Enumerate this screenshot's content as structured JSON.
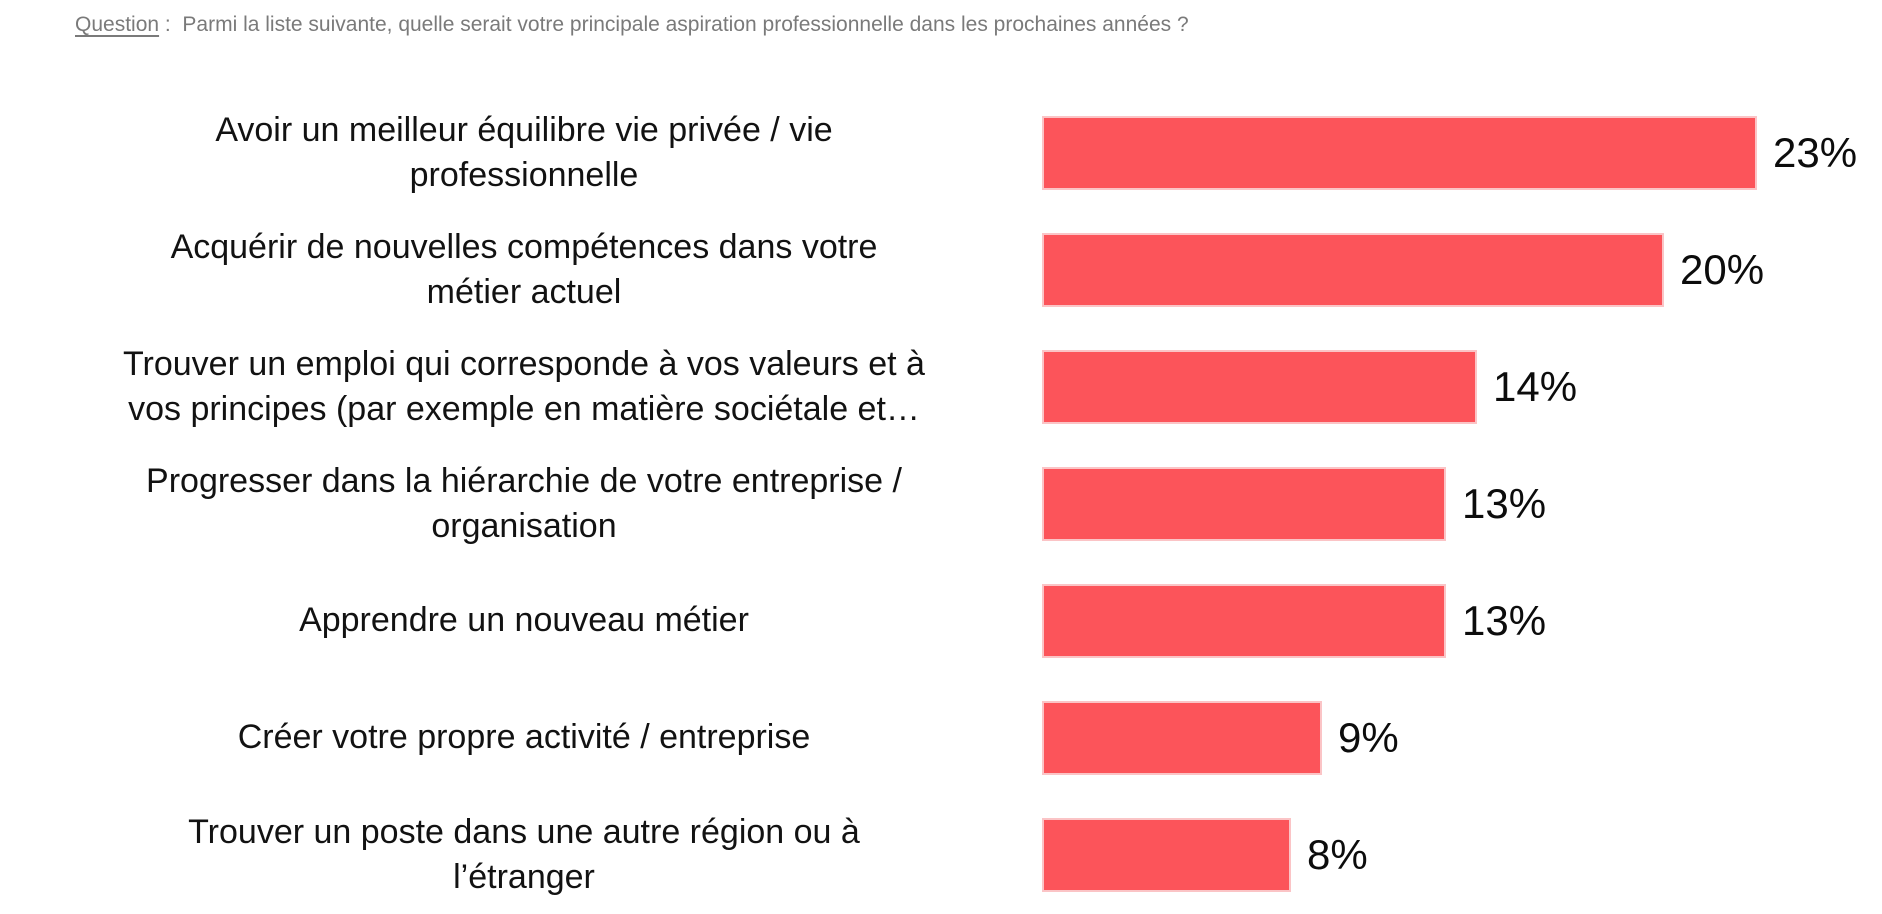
{
  "question": {
    "label": "Question",
    "separator": " :  ",
    "text": "Parmi la liste suivante, quelle serait votre principale aspiration professionnelle dans les prochaines années ?"
  },
  "colors": {
    "bar": "#fc545a",
    "bar_border": "#fbc4c6",
    "question_text": "#7a7a7a",
    "category_text": "#121212",
    "value_text": "#0c0c0c"
  },
  "chart_data": {
    "type": "bar",
    "orientation": "horizontal",
    "unit": "%",
    "xlim": [
      0,
      23
    ],
    "axes_visible": false,
    "grid": false,
    "legend": false,
    "title": "",
    "xlabel": "",
    "ylabel": "",
    "bar_color": "#fc545a",
    "categories": [
      "Avoir un meilleur équilibre vie privée / vie\nprofessionnelle",
      "Acquérir de nouvelles compétences dans votre\nmétier actuel",
      "Trouver un emploi qui corresponde à vos valeurs et à\nvos principes (par exemple en matière sociétale et…",
      "Progresser dans la hiérarchie de votre entreprise /\norganisation",
      "Apprendre un nouveau métier",
      "Créer votre propre activité / entreprise",
      "Trouver un poste dans une autre région ou à\nl’étranger"
    ],
    "values": [
      23,
      20,
      14,
      13,
      13,
      9,
      8
    ],
    "value_labels": [
      "23%",
      "20%",
      "14%",
      "13%",
      "13%",
      "9%",
      "8%"
    ]
  }
}
